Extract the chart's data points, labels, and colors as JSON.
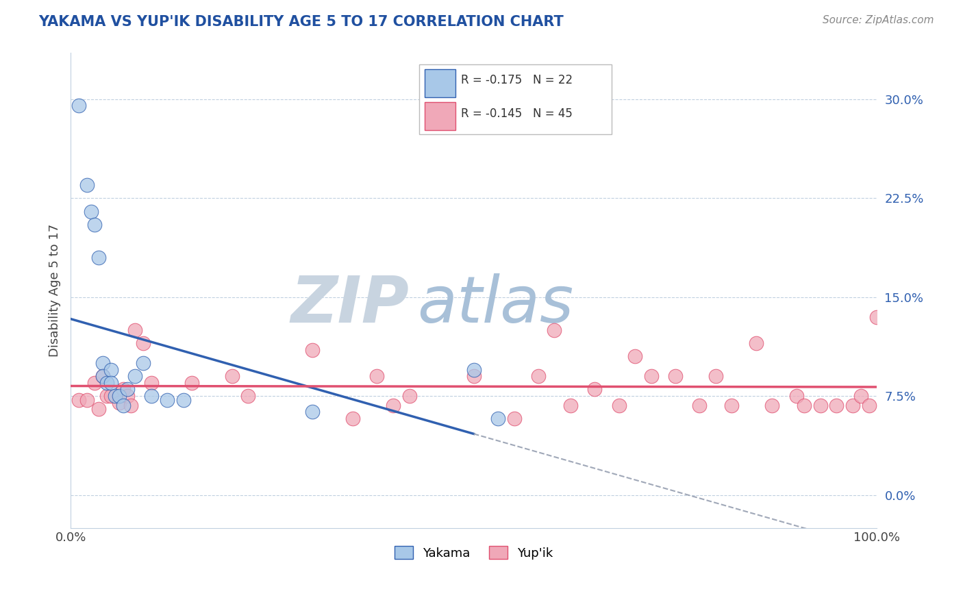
{
  "title": "YAKAMA VS YUP'IK DISABILITY AGE 5 TO 17 CORRELATION CHART",
  "source": "Source: ZipAtlas.com",
  "ylabel": "Disability Age 5 to 17",
  "xlim": [
    0,
    1.0
  ],
  "ylim": [
    -0.025,
    0.335
  ],
  "yticks": [
    0.0,
    0.075,
    0.15,
    0.225,
    0.3
  ],
  "ytick_labels": [
    "0.0%",
    "7.5%",
    "15.0%",
    "22.5%",
    "30.0%"
  ],
  "xticks": [
    0.0,
    1.0
  ],
  "xtick_labels": [
    "0.0%",
    "100.0%"
  ],
  "legend_R1": "R = -0.175",
  "legend_N1": "N = 22",
  "legend_R2": "R = -0.145",
  "legend_N2": "N = 45",
  "legend_label1": "Yakama",
  "legend_label2": "Yup'ik",
  "color_yakama": "#A8C8E8",
  "color_yupik": "#F0A8B8",
  "line_color_yakama": "#3060B0",
  "line_color_yupik": "#E05070",
  "line_color_dashed": "#A0A8B8",
  "background_color": "#FFFFFF",
  "grid_color": "#C0D0E0",
  "title_color": "#2050A0",
  "source_color": "#888888",
  "watermark_ZIP_color": "#C8D4E0",
  "watermark_atlas_color": "#A8C0D8",
  "yakama_x": [
    0.01,
    0.02,
    0.025,
    0.03,
    0.035,
    0.04,
    0.04,
    0.045,
    0.05,
    0.05,
    0.055,
    0.06,
    0.065,
    0.07,
    0.08,
    0.09,
    0.1,
    0.12,
    0.14,
    0.3,
    0.5,
    0.53
  ],
  "yakama_y": [
    0.295,
    0.235,
    0.215,
    0.205,
    0.18,
    0.1,
    0.09,
    0.085,
    0.095,
    0.085,
    0.075,
    0.075,
    0.068,
    0.08,
    0.09,
    0.1,
    0.075,
    0.072,
    0.072,
    0.063,
    0.095,
    0.058
  ],
  "yupik_x": [
    0.01,
    0.02,
    0.03,
    0.035,
    0.04,
    0.045,
    0.05,
    0.06,
    0.065,
    0.07,
    0.075,
    0.08,
    0.09,
    0.1,
    0.15,
    0.2,
    0.22,
    0.3,
    0.35,
    0.38,
    0.4,
    0.42,
    0.5,
    0.55,
    0.58,
    0.6,
    0.62,
    0.65,
    0.68,
    0.7,
    0.72,
    0.75,
    0.78,
    0.8,
    0.82,
    0.85,
    0.87,
    0.9,
    0.91,
    0.93,
    0.95,
    0.97,
    0.98,
    0.99,
    1.0
  ],
  "yupik_y": [
    0.072,
    0.072,
    0.085,
    0.065,
    0.09,
    0.075,
    0.075,
    0.07,
    0.08,
    0.075,
    0.068,
    0.125,
    0.115,
    0.085,
    0.085,
    0.09,
    0.075,
    0.11,
    0.058,
    0.09,
    0.068,
    0.075,
    0.09,
    0.058,
    0.09,
    0.125,
    0.068,
    0.08,
    0.068,
    0.105,
    0.09,
    0.09,
    0.068,
    0.09,
    0.068,
    0.115,
    0.068,
    0.075,
    0.068,
    0.068,
    0.068,
    0.068,
    0.075,
    0.068,
    0.135
  ],
  "yakama_line_x0": 0.0,
  "yakama_line_x1": 0.5,
  "dashed_line_x0": 0.5,
  "dashed_line_x1": 1.0
}
